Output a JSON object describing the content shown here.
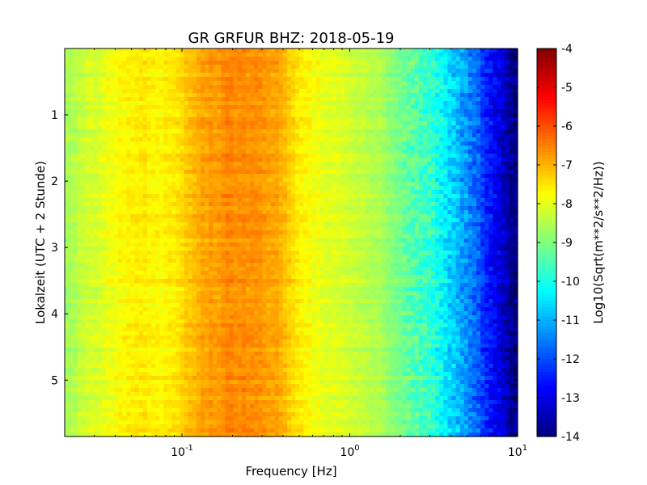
{
  "chart_data": {
    "type": "heatmap",
    "title": "GR GRFUR BHZ: 2018-05-19",
    "xlabel": "Frequency [Hz]",
    "ylabel": "Lokalzeit (UTC + 2 Stunde)",
    "x_scale": "log",
    "xlim": [
      0.02,
      10
    ],
    "ylim": [
      5.85,
      0
    ],
    "x_ticks": [
      {
        "value": 0.1,
        "base": "10",
        "exp": "-1"
      },
      {
        "value": 1,
        "base": "10",
        "exp": "0"
      },
      {
        "value": 10,
        "base": "10",
        "exp": "1"
      }
    ],
    "y_ticks": [
      "1",
      "2",
      "3",
      "4",
      "5"
    ],
    "colorbar": {
      "label": "Log10(Sqrt(m**2/s**2/Hz))",
      "range": [
        -14,
        -4
      ],
      "colormap": "jet",
      "ticks": [
        "-4",
        "-5",
        "-6",
        "-7",
        "-8",
        "-9",
        "-10",
        "-11",
        "-12",
        "-13",
        "-14"
      ]
    },
    "profile": {
      "frequency_hz": [
        0.02,
        0.04,
        0.06,
        0.08,
        0.1,
        0.13,
        0.2,
        0.3,
        0.4,
        0.5,
        0.7,
        1.0,
        1.5,
        2.0,
        3.0,
        4.0,
        5.0,
        6.0,
        7.0,
        8.0,
        9.0,
        10.0
      ],
      "level": [
        -8.6,
        -7.8,
        -7.6,
        -7.7,
        -7.4,
        -6.9,
        -6.6,
        -6.7,
        -7.0,
        -7.6,
        -8.0,
        -8.2,
        -8.6,
        -9.1,
        -9.8,
        -10.6,
        -11.3,
        -12.0,
        -12.6,
        -13.2,
        -13.7,
        -14.0
      ]
    },
    "grid": false
  }
}
